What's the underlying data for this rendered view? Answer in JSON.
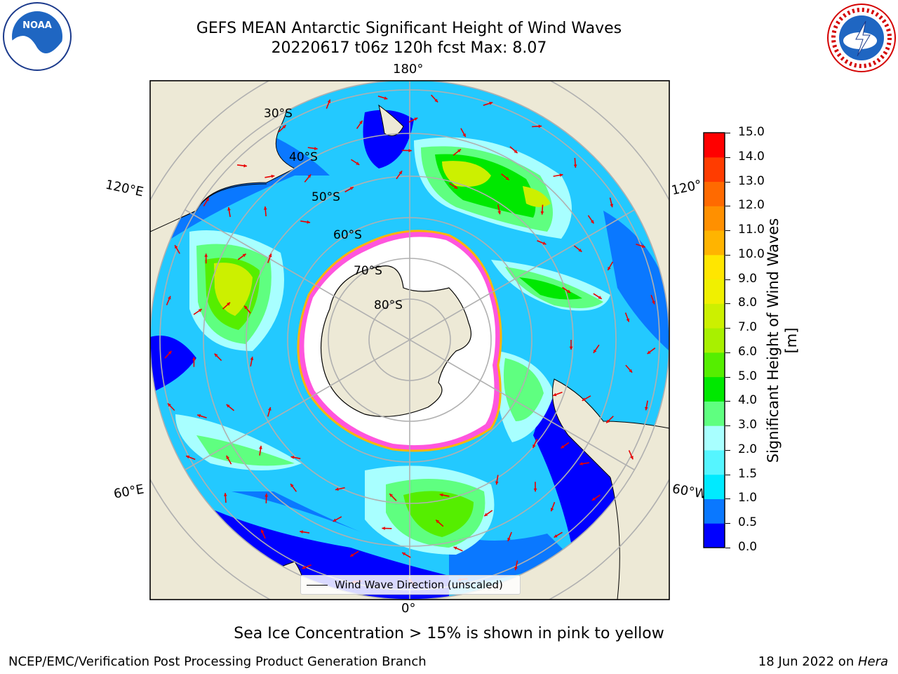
{
  "header": {
    "title": "GEFS MEAN Antarctic Significant Height of Wind Waves",
    "subtitle": "20220617 t06z 120h fcst   Max: 8.07"
  },
  "map": {
    "projection": "south polar stereographic",
    "lon_labels": {
      "top": "180°",
      "bottom": "0°",
      "left_upper": "120°E",
      "left_lower": "60°E",
      "right_upper": "120°",
      "right_lower": "60°W"
    },
    "lat_labels": [
      "30°S",
      "40°S",
      "50°S",
      "60°S",
      "70°S",
      "80°S"
    ],
    "legend_label": "Wind Wave Direction (unscaled)",
    "colors": {
      "land": "#ede9d6",
      "ice_free_white": "#ffffff",
      "arrow": "#e80000",
      "grid": "#b0b0b0"
    }
  },
  "colorbar": {
    "label": "Significant Height of Wind Waves [m]",
    "ticks": [
      "0.0",
      "0.5",
      "1.0",
      "1.5",
      "2.0",
      "3.0",
      "4.0",
      "5.0",
      "6.0",
      "7.0",
      "8.0",
      "9.0",
      "10.0",
      "11.0",
      "12.0",
      "13.0",
      "14.0",
      "15.0"
    ],
    "colors": [
      "#0000ff",
      "#0a78ff",
      "#00eaff",
      "#55f5ff",
      "#a8ffff",
      "#5fff80",
      "#00e800",
      "#55ee00",
      "#a8f000",
      "#ccf000",
      "#f0f000",
      "#ffe600",
      "#ffb400",
      "#ff9000",
      "#ff6a00",
      "#ff3c00",
      "#ff0000"
    ]
  },
  "notes": {
    "sea_ice": "Sea Ice Concentration > 15% is shown in pink to yellow",
    "producer": "NCEP/EMC/Verification Post Processing Product Generation Branch",
    "date_prefix": "18 Jun 2022 on ",
    "machine": "Hera"
  },
  "logos": {
    "left": "NOAA",
    "right": "NATIONAL WEATHER SERVICE"
  }
}
